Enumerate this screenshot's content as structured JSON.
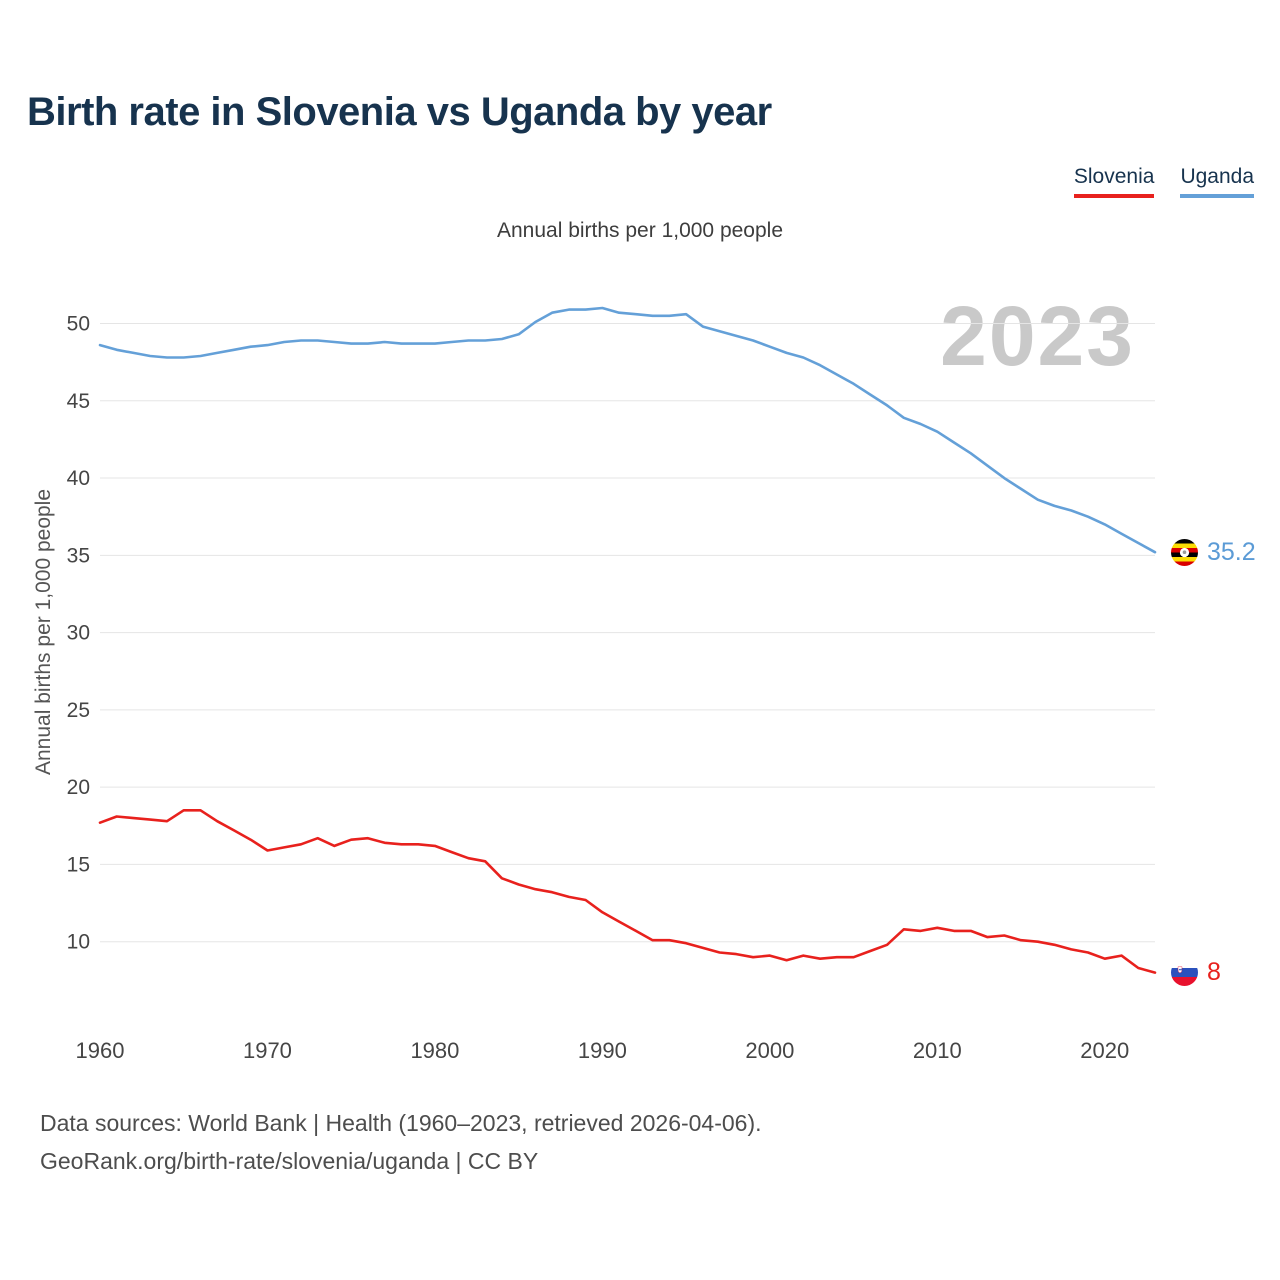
{
  "page": {
    "title": "Birth rate in Slovenia vs Uganda by year",
    "watermark_year": "2023",
    "footer_line1": "Data sources: World Bank | Health (1960–2023, retrieved 2026-04-06).",
    "footer_line2": "GeoRank.org/birth-rate/slovenia/uganda | CC BY"
  },
  "legend": {
    "items": [
      {
        "label": "Slovenia",
        "color": "#e8211d"
      },
      {
        "label": "Uganda",
        "color": "#64a0d8"
      }
    ]
  },
  "end_labels": {
    "uganda": {
      "value": "35.2",
      "flag": "uganda-flag",
      "color": "#5b9bd6"
    },
    "slovenia": {
      "value": "8",
      "flag": "slovenia-flag",
      "color": "#e8211d"
    }
  },
  "chart_data": {
    "type": "line",
    "title": "Annual births per 1,000 people",
    "xlabel": "",
    "ylabel": "Annual births per 1,000 people",
    "x_start": 1960,
    "x_end": 2023,
    "x_step": 1,
    "x_ticks": [
      1960,
      1970,
      1980,
      1990,
      2000,
      2010,
      2020
    ],
    "y_ticks": [
      10,
      15,
      20,
      25,
      30,
      35,
      40,
      45,
      50
    ],
    "xlim": [
      1960,
      2023
    ],
    "ylim": [
      4.2,
      52.5
    ],
    "grid": "horizontal",
    "legend_position": "top-right",
    "series": [
      {
        "name": "Uganda",
        "color": "#64a0d8",
        "values": [
          48.6,
          48.3,
          48.1,
          47.9,
          47.8,
          47.8,
          47.9,
          48.1,
          48.3,
          48.5,
          48.6,
          48.8,
          48.9,
          48.9,
          48.8,
          48.7,
          48.7,
          48.8,
          48.7,
          48.7,
          48.7,
          48.8,
          48.9,
          48.9,
          49.0,
          49.3,
          50.1,
          50.7,
          50.9,
          50.9,
          51.0,
          50.7,
          50.6,
          50.5,
          50.5,
          50.6,
          49.8,
          49.5,
          49.2,
          48.9,
          48.5,
          48.1,
          47.8,
          47.3,
          46.7,
          46.1,
          45.4,
          44.7,
          43.9,
          43.5,
          43.0,
          42.3,
          41.6,
          40.8,
          40.0,
          39.3,
          38.6,
          38.2,
          37.9,
          37.5,
          37.0,
          36.4,
          35.8,
          35.2
        ]
      },
      {
        "name": "Slovenia",
        "color": "#e8211d",
        "values": [
          17.7,
          18.1,
          18.0,
          17.9,
          17.8,
          18.5,
          18.5,
          17.8,
          17.2,
          16.6,
          15.9,
          16.1,
          16.3,
          16.7,
          16.2,
          16.6,
          16.7,
          16.4,
          16.3,
          16.3,
          16.2,
          15.8,
          15.4,
          15.2,
          14.1,
          13.7,
          13.4,
          13.2,
          12.9,
          12.7,
          11.9,
          11.3,
          10.7,
          10.1,
          10.1,
          9.9,
          9.6,
          9.3,
          9.2,
          9.0,
          9.1,
          8.8,
          9.1,
          8.9,
          9.0,
          9.0,
          9.4,
          9.8,
          10.8,
          10.7,
          10.9,
          10.7,
          10.7,
          10.3,
          10.4,
          10.1,
          10.0,
          9.8,
          9.5,
          9.3,
          8.9,
          9.1,
          8.3,
          8.0
        ]
      }
    ]
  }
}
